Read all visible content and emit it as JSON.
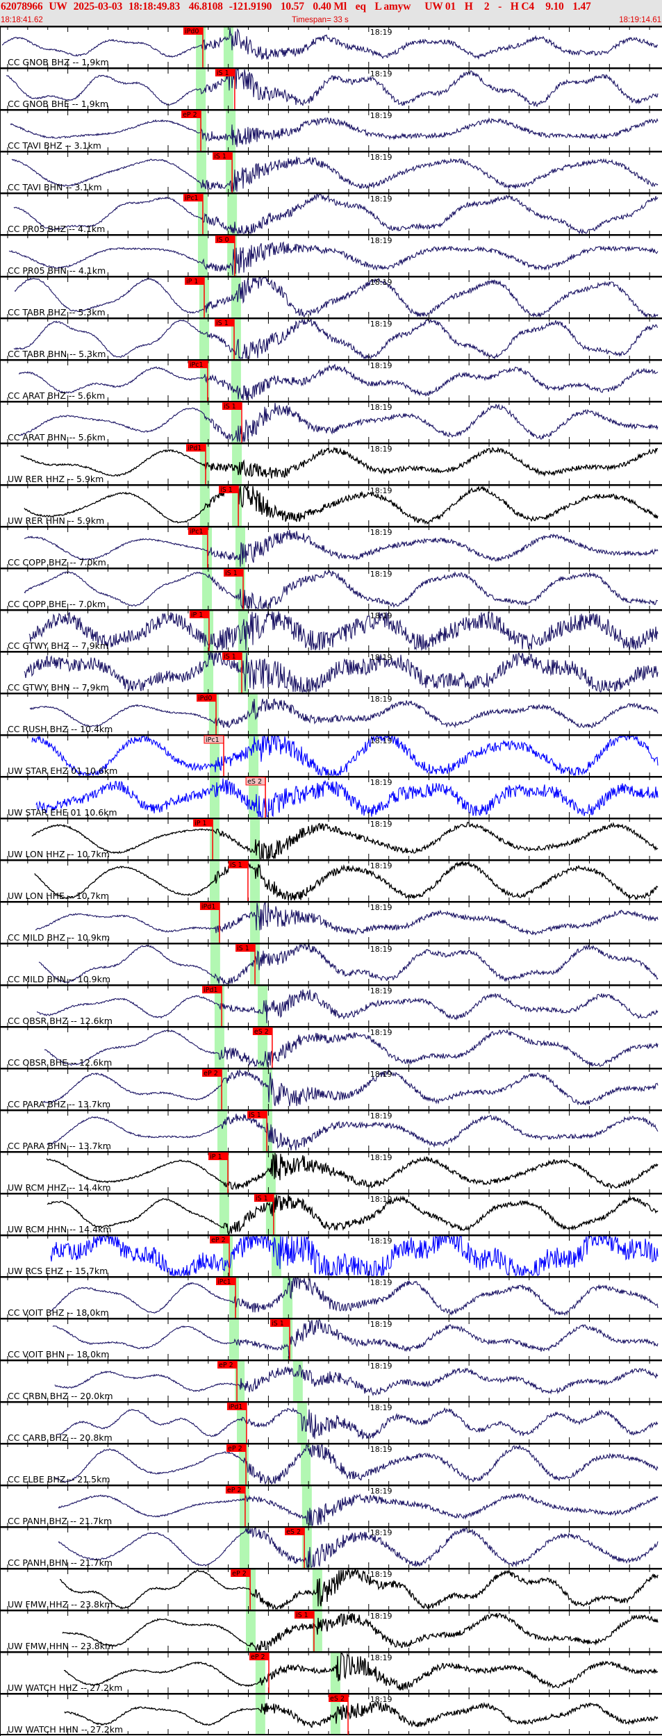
{
  "header": {
    "fields": [
      "62078966",
      "UW",
      "2025-03-03",
      "18:18:49.83",
      " 46.8108",
      "-121.9190",
      " 10.57",
      " 0.40 Ml",
      " eq",
      " L amyw",
      "   UW 01",
      " H",
      "  2",
      " -",
      " H C4",
      "  9.10",
      " 1.47"
    ],
    "start_time": "18:18:41.62",
    "timespan_label": "Timespan=  33 s",
    "end_time": "18:19:14.61"
  },
  "minute_marker": "18:19",
  "colors": {
    "header_text": "#e00000",
    "pick": "#ff0000",
    "pick_light": "#f6c4c4",
    "predicted_band": "#b2f7b2",
    "cc": "#1b1464",
    "uw_hh": "#000000",
    "uw_eh": "#0000ff"
  },
  "traces": [
    {
      "label": "CC GNOB BHZ -- 1.9km",
      "color": "#1b1464",
      "pred_p": "18:18:51.63",
      "pred_s": "18:18:53.01",
      "pick": {
        "label": "iPd0",
        "time": "18:18:51.73",
        "light": false
      }
    },
    {
      "label": "CC GNOB BHE -- 1.9km",
      "color": "#1b1464",
      "pred_p": "18:18:51.63",
      "pred_s": "18:18:53.01",
      "pick": {
        "label": "iS 1",
        "time": "18:18:53.32",
        "light": false
      }
    },
    {
      "label": "CC TAVI BHZ -- 3.1km",
      "color": "#1b1464",
      "pred_p": "18:18:51.66",
      "pred_s": "18:18:53.12",
      "pick": {
        "label": "eP 2",
        "time": "18:18:51.63",
        "light": false
      }
    },
    {
      "label": "CC TAVI BHN -- 3.1km",
      "color": "#1b1464",
      "pred_p": "18:18:51.66",
      "pred_s": "18:18:53.12",
      "pick": {
        "label": "iS 1",
        "time": "18:18:53.19",
        "light": false
      }
    },
    {
      "label": "CC PR05 BHZ -- 4.1km",
      "color": "#1b1464",
      "pred_p": "18:18:51.73",
      "pred_s": "18:18:53.19",
      "pick": {
        "label": "iPc1",
        "time": "18:18:51.73",
        "light": false
      }
    },
    {
      "label": "CC PR05 BHN -- 4.1km",
      "color": "#1b1464",
      "pred_p": "18:18:51.73",
      "pred_s": "18:18:53.19",
      "pick": {
        "label": "iS 0",
        "time": "18:18:53.32",
        "light": false
      }
    },
    {
      "label": "CC TABR BHZ -- 5.3km",
      "color": "#1b1464",
      "pred_p": "18:18:51.80",
      "pred_s": "18:18:53.39",
      "pick": {
        "label": "iP 1",
        "time": "18:18:51.80",
        "light": false
      }
    },
    {
      "label": "CC TABR BHN -- 5.3km",
      "color": "#1b1464",
      "pred_p": "18:18:51.80",
      "pred_s": "18:18:53.39",
      "pick": {
        "label": "iS 1",
        "time": "18:18:53.29",
        "light": false
      }
    },
    {
      "label": "CC ARAT BHZ -- 5.6km",
      "color": "#1b1464",
      "pred_p": "18:18:51.83",
      "pred_s": "18:18:53.39",
      "pick": {
        "label": "iPc1",
        "time": "18:18:51.97",
        "light": false
      }
    },
    {
      "label": "CC ARAT BHN -- 5.6km",
      "color": "#1b1464",
      "pred_p": "18:18:51.83",
      "pred_s": "18:18:53.39",
      "pick": {
        "label": "iS 1",
        "time": "18:18:53.67",
        "light": false
      }
    },
    {
      "label": "UW RER HHZ -- 5.9km",
      "color": "#000000",
      "pred_p": "18:18:51.83",
      "pred_s": "18:18:53.43",
      "pick": {
        "label": "iPd1",
        "time": "18:18:51.87",
        "light": false
      }
    },
    {
      "label": "UW RER HHN -- 5.9km",
      "color": "#000000",
      "pred_p": "18:18:51.83",
      "pred_s": "18:18:53.43",
      "pick": {
        "label": "iS 1",
        "time": "18:18:53.50",
        "light": false
      }
    },
    {
      "label": "CC COPP BHZ -- 7.0km",
      "color": "#1b1464",
      "pred_p": "18:18:51.94",
      "pred_s": "18:18:53.60",
      "pick": {
        "label": "iPc1",
        "time": "18:18:51.97",
        "light": false
      }
    },
    {
      "label": "CC COPP BHE -- 7.0km",
      "color": "#1b1464",
      "pred_p": "18:18:51.94",
      "pred_s": "18:18:53.60",
      "pick": {
        "label": "iS 1",
        "time": "18:18:53.74",
        "light": false
      }
    },
    {
      "label": "CC GTWY BHZ -- 7.9km",
      "color": "#1b1464",
      "pred_p": "18:18:52.01",
      "pred_s": "18:18:53.74",
      "pick": {
        "label": "iP 1",
        "time": "18:18:52.04",
        "light": false
      }
    },
    {
      "label": "CC GTWY BHN -- 7.9km",
      "color": "#1b1464",
      "pred_p": "18:18:52.01",
      "pred_s": "18:18:53.74",
      "pick": {
        "label": "iS 1",
        "time": "18:18:53.67",
        "light": false
      }
    },
    {
      "label": "CC RUSH BHZ -- 10.4km",
      "color": "#1b1464",
      "pred_p": "18:18:52.28",
      "pred_s": "18:18:54.22",
      "pick": {
        "label": "iPd0",
        "time": "18:18:52.39",
        "light": false
      }
    },
    {
      "label": "UW STAR EHZ 01 10.6km",
      "color": "#0000ff",
      "pred_p": "18:18:52.32",
      "pred_s": "18:18:54.26",
      "pick": {
        "label": "iPc1",
        "time": "18:18:52.77",
        "light": true
      }
    },
    {
      "label": "UW STAR EHE 01 10.6km",
      "color": "#0000ff",
      "pred_p": "18:18:52.32",
      "pred_s": "18:18:54.26",
      "pick": {
        "label": "eS 2",
        "time": "18:18:54.85",
        "light": true
      }
    },
    {
      "label": "UW LON HHZ -- 10.7km",
      "color": "#000000",
      "pred_p": "18:18:52.32",
      "pred_s": "18:18:54.33",
      "pick": {
        "label": "iP 1",
        "time": "18:18:52.22",
        "light": false
      }
    },
    {
      "label": "UW LON HHE -- 10.7km",
      "color": "#000000",
      "pred_p": "18:18:52.32",
      "pred_s": "18:18:54.33",
      "pick": {
        "label": "iS 1",
        "time": "18:18:53.98",
        "light": false
      }
    },
    {
      "label": "CC MILD BHZ -- 10.9km",
      "color": "#1b1464",
      "pred_p": "18:18:52.35",
      "pred_s": "18:18:54.33",
      "pick": {
        "label": "iPd1",
        "time": "18:18:52.56",
        "light": false
      }
    },
    {
      "label": "CC MILD BHN -- 10.9km",
      "color": "#1b1464",
      "pred_p": "18:18:52.35",
      "pred_s": "18:18:54.33",
      "pick": {
        "label": "iS 1",
        "time": "18:18:54.33",
        "light": false
      }
    },
    {
      "label": "CC OBSR BHZ -- 12.6km",
      "color": "#1b1464",
      "pred_p": "18:18:52.56",
      "pred_s": "18:18:54.71",
      "pick": {
        "label": "iPd1",
        "time": "18:18:52.67",
        "light": false
      }
    },
    {
      "label": "CC OBSR BHE -- 12.6km",
      "color": "#1b1464",
      "pred_p": "18:18:52.56",
      "pred_s": "18:18:54.71",
      "pick": {
        "label": "eS 2",
        "time": "18:18:55.19",
        "light": false
      }
    },
    {
      "label": "CC PARA BHZ -- 13.7km",
      "color": "#1b1464",
      "pred_p": "18:18:52.70",
      "pred_s": "18:18:54.95",
      "pick": {
        "label": "eP 2",
        "time": "18:18:52.67",
        "light": false
      }
    },
    {
      "label": "CC PARA BHN -- 13.7km",
      "color": "#1b1464",
      "pred_p": "18:18:52.70",
      "pred_s": "18:18:54.95",
      "pick": {
        "label": "iS 1",
        "time": "18:18:54.92",
        "light": false
      }
    },
    {
      "label": "UW RCM HHZ -- 14.4km",
      "color": "#000000",
      "pred_p": "18:18:52.80",
      "pred_s": "18:18:55.12",
      "pick": {
        "label": "iP 1",
        "time": "18:18:52.98",
        "light": false
      }
    },
    {
      "label": "UW RCM HHN -- 14.4km",
      "color": "#000000",
      "pred_p": "18:18:52.80",
      "pred_s": "18:18:55.12",
      "pick": {
        "label": "iS 1",
        "time": "18:18:55.26",
        "light": false
      }
    },
    {
      "label": "UW RCS EHZ -- 15.7km",
      "color": "#0000ff",
      "pred_p": "18:18:52.98",
      "pred_s": "18:18:55.40",
      "pick": {
        "label": "eP 2",
        "time": "18:18:53.05",
        "light": false
      }
    },
    {
      "label": "CC VOIT BHZ -- 18.0km",
      "color": "#1b1464",
      "pred_p": "18:18:53.29",
      "pred_s": "18:18:55.96",
      "pick": {
        "label": "iPc1",
        "time": "18:18:53.36",
        "light": false
      }
    },
    {
      "label": "CC VOIT BHN -- 18.0km",
      "color": "#1b1464",
      "pred_p": "18:18:53.29",
      "pred_s": "18:18:55.96",
      "pick": {
        "label": "iS 1",
        "time": "18:18:56.06",
        "light": false
      }
    },
    {
      "label": "CC CRBN BHZ -- 20.0km",
      "color": "#1b1464",
      "pred_p": "18:18:53.57",
      "pred_s": "18:18:56.47",
      "pick": {
        "label": "eP 2",
        "time": "18:18:53.43",
        "light": false
      }
    },
    {
      "label": "CC CARB BHZ -- 20.8km",
      "color": "#1b1464",
      "pred_p": "18:18:53.67",
      "pred_s": "18:18:56.68",
      "pick": {
        "label": "iPd1",
        "time": "18:18:53.91",
        "light": false
      }
    },
    {
      "label": "CC ELBE BHZ -- 21.5km",
      "color": "#1b1464",
      "pred_p": "18:18:53.77",
      "pred_s": "18:18:56.86",
      "pick": {
        "label": "eP 2",
        "time": "18:18:53.88",
        "light": false
      }
    },
    {
      "label": "CC PANH BHZ -- 21.7km",
      "color": "#1b1464",
      "pred_p": "18:18:53.81",
      "pred_s": "18:18:56.92",
      "pick": {
        "label": "eP 2",
        "time": "18:18:53.84",
        "light": false
      }
    },
    {
      "label": "CC PANH BHN -- 21.7km",
      "color": "#1b1464",
      "pred_p": "18:18:53.81",
      "pred_s": "18:18:56.92",
      "pick": {
        "label": "eS 2",
        "time": "18:18:56.79",
        "light": false
      }
    },
    {
      "label": "UW FMW HHZ -- 23.8km",
      "color": "#000000",
      "pred_p": "18:18:54.12",
      "pred_s": "18:18:57.44",
      "pick": {
        "label": "eP 2",
        "time": "18:18:54.09",
        "light": false
      }
    },
    {
      "label": "UW FMW HHN -- 23.8km",
      "color": "#000000",
      "pred_p": "18:18:54.12",
      "pred_s": "18:18:57.44",
      "pick": {
        "label": "iS 1",
        "time": "18:18:57.27",
        "light": false
      }
    },
    {
      "label": "UW WATCH HHZ -- 27.2km",
      "color": "#000000",
      "pred_p": "18:18:54.60",
      "pred_s": "18:18:58.34",
      "pick": {
        "label": "eP 2",
        "time": "18:18:55.02",
        "light": false
      }
    },
    {
      "label": "UW WATCH HHN -- 27.2km",
      "color": "#000000",
      "pred_p": "18:18:54.60",
      "pred_s": "18:18:58.34",
      "pick": {
        "label": "eS 2",
        "time": "18:18:58.97",
        "light": false
      }
    }
  ]
}
